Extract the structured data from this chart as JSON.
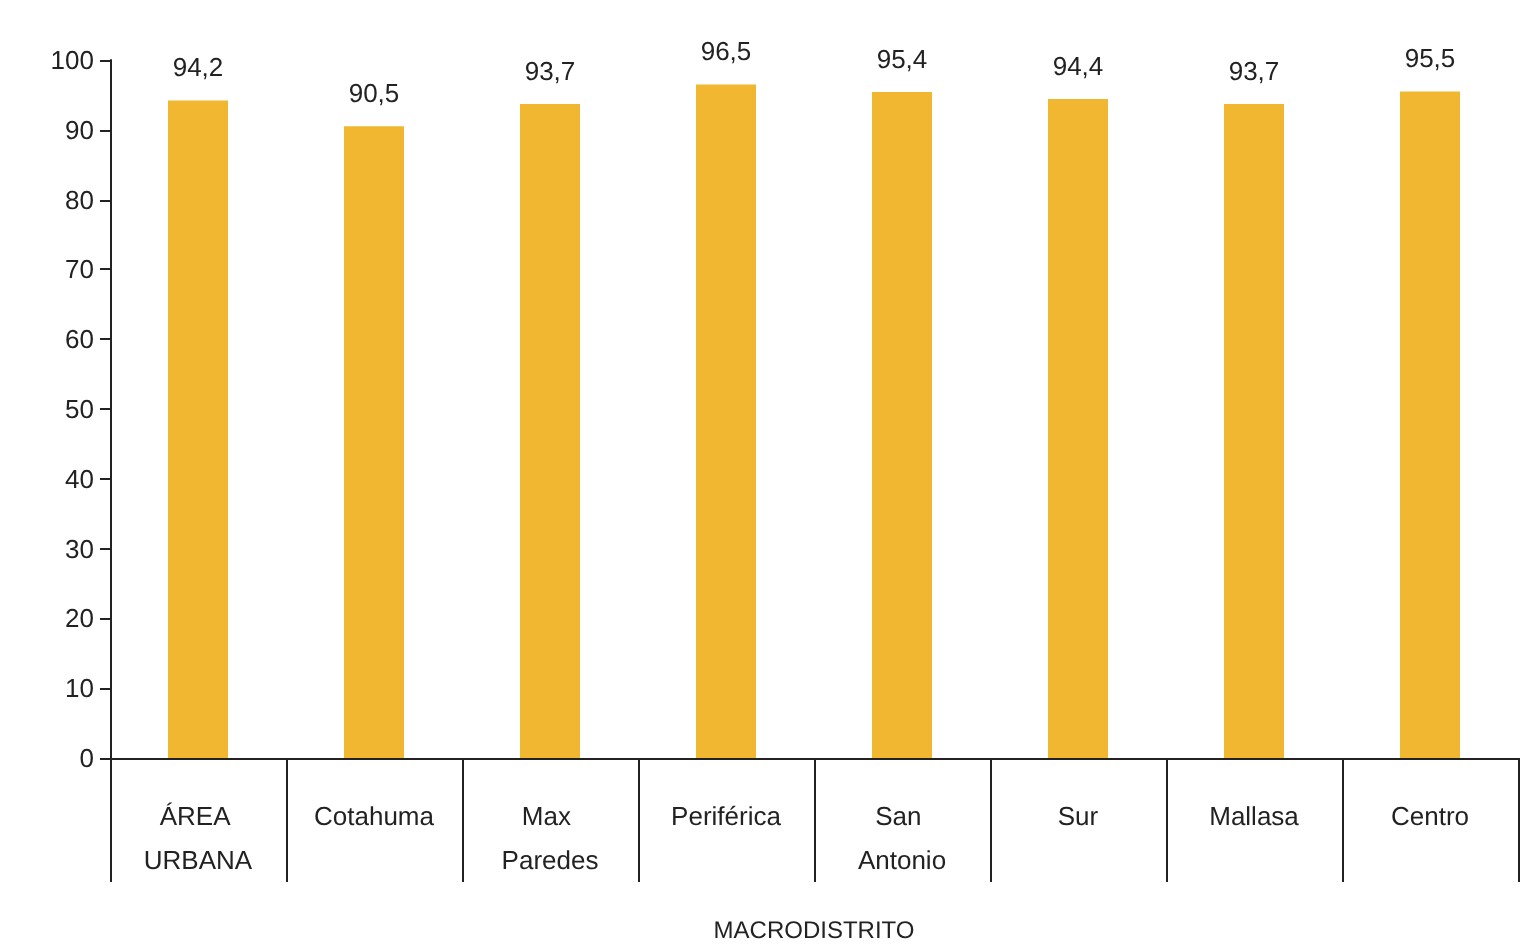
{
  "chart_data": {
    "type": "bar",
    "xlabel": "MACRODISTRITO",
    "categories": [
      "ÁREA URBANA",
      "Cotahuma",
      "Max Paredes",
      "Periférica",
      "San Antonio",
      "Sur",
      "Mallasa",
      "Centro"
    ],
    "values": [
      94.2,
      90.5,
      93.7,
      96.5,
      95.4,
      94.4,
      93.7,
      95.5
    ],
    "value_labels": [
      "94,2",
      "90,5",
      "93,7",
      "96,5",
      "95,4",
      "94,4",
      "93,7",
      "95,5"
    ],
    "color": "#f2b731",
    "ylim": [
      0,
      100
    ],
    "yticks": [
      0,
      10,
      20,
      30,
      40,
      50,
      60,
      70,
      80,
      90,
      100
    ],
    "grid": false
  }
}
